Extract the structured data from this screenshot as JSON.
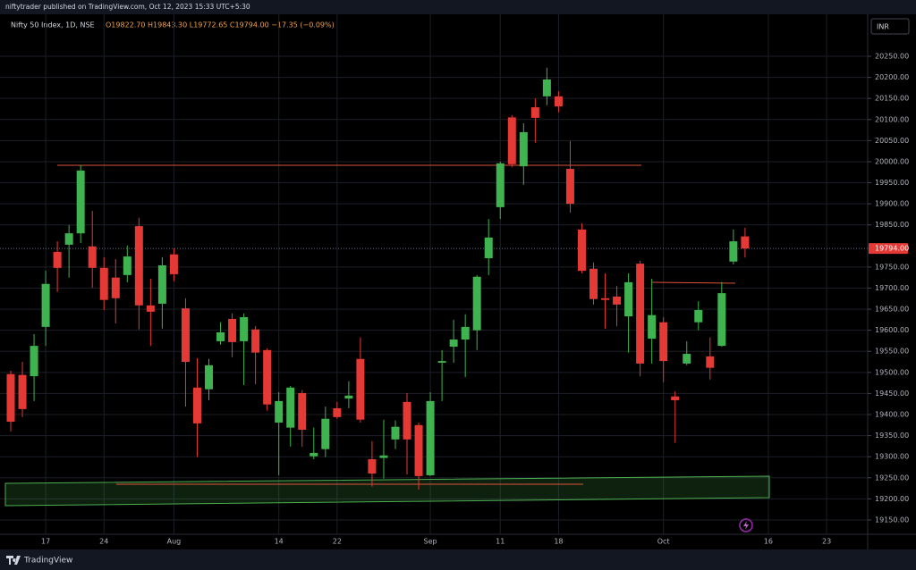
{
  "chart_data": {
    "type": "candlestick",
    "caption": "niftytrader published on TradingView.com, Oct 12, 2023 15:33 UTC+5:30",
    "title": "Nifty 50 Index, 1D, NSE",
    "subtitle": "O19822.70 H19843.30 L19772.65 C19794.00 −17.35 (−0.09%)",
    "currency": "INR",
    "brand": "TradingView",
    "last_price_label": "19794.00",
    "up_color": "#3fb34f",
    "down_color": "#e53935",
    "grid": true,
    "categories": [
      null,
      null,
      null,
      "17",
      null,
      null,
      null,
      null,
      "24",
      null,
      null,
      null,
      null,
      null,
      "Aug",
      null,
      null,
      null,
      null,
      null,
      null,
      null,
      null,
      "14",
      null,
      null,
      null,
      null,
      "22",
      null,
      null,
      null,
      null,
      null,
      null,
      null,
      "Sep",
      null,
      null,
      null,
      null,
      null,
      "11",
      null,
      null,
      null,
      null,
      "18",
      null,
      null,
      null,
      null,
      null,
      null,
      null,
      null,
      "Oct",
      null,
      null,
      null,
      null,
      null,
      null,
      null,
      null,
      "16",
      null,
      null,
      null,
      null,
      "23",
      null,
      null,
      null
    ],
    "open": [
      19496,
      19494,
      19491,
      19608,
      19786,
      19803,
      19830,
      19799,
      19748,
      19725,
      19731,
      19847,
      19659,
      19663,
      19780,
      19652,
      19464,
      19460,
      19574,
      19627,
      19574,
      19602,
      19553,
      19381,
      19369,
      19451,
      19301,
      19318,
      19415,
      19438,
      19532,
      19294,
      19297,
      19341,
      19430,
      19375,
      19256,
      19523,
      19561,
      19578,
      19600,
      19771,
      19892,
      20105,
      19989,
      20129,
      20155,
      20155,
      19983,
      19839,
      19746,
      19676,
      19680,
      19633,
      19758,
      19580,
      19619,
      19443,
      19521,
      19619,
      19538,
      19563,
      19763,
      19822.7,
      null,
      null,
      null,
      null,
      null,
      null,
      null,
      null,
      null,
      null
    ],
    "high": [
      19504,
      19525,
      19591,
      19741,
      19811,
      19850,
      19992,
      19883,
      19773,
      19769,
      19801,
      19867,
      19722,
      19773,
      19794,
      19676,
      19534,
      19532,
      19619,
      19640,
      19640,
      19610,
      19557,
      19453,
      19468,
      19458,
      19369,
      19419,
      19430,
      19479,
      19583,
      19337,
      19388,
      19386,
      19451,
      19381,
      19453,
      19553,
      19625,
      19638,
      19731,
      19864,
      20000,
      20110,
      20091,
      20150,
      20223,
      20167,
      20049,
      19854,
      19761,
      19735,
      19705,
      19735,
      19765,
      19722,
      19631,
      19455,
      19574,
      19669,
      19583,
      19714,
      19839,
      19843.3,
      null,
      null,
      null,
      null,
      null,
      null,
      null,
      null,
      null,
      null
    ],
    "low": [
      19360,
      19394,
      19432,
      19563,
      19691,
      19725,
      19807,
      19701,
      19648,
      19616,
      19714,
      19602,
      19563,
      19604,
      19716,
      19419,
      19299,
      19434,
      19566,
      19536,
      19470,
      19472,
      19409,
      19256,
      19324,
      19324,
      19294,
      19299,
      19390,
      19415,
      19381,
      19229,
      19248,
      19318,
      19258,
      19222,
      19254,
      19432,
      19523,
      19489,
      19553,
      19731,
      19864,
      19987,
      19945,
      20045,
      20134,
      20117,
      19879,
      19735,
      19661,
      19604,
      19610,
      19547,
      19491,
      19521,
      19477,
      19333,
      19517,
      19600,
      19483,
      19561,
      19756,
      19772.65,
      null,
      null,
      null,
      null,
      null,
      null,
      null,
      null,
      null,
      null
    ],
    "close": [
      19383,
      19413,
      19563,
      19710,
      19748,
      19830,
      19979,
      19748,
      19672,
      19676,
      19775,
      19659,
      19644,
      19754,
      19733,
      19525,
      19379,
      19517,
      19595,
      19572,
      19631,
      19547,
      19424,
      19432,
      19464,
      19364,
      19309,
      19390,
      19394,
      19445,
      19388,
      19260,
      19303,
      19371,
      19341,
      19254,
      19432,
      19527,
      19578,
      19608,
      19727,
      19820,
      19996,
      19994,
      20070,
      20104,
      20195,
      20131,
      19900,
      19741,
      19674,
      19672,
      19661,
      19714,
      19521,
      19636,
      19527,
      19434,
      19544,
      19648,
      19511,
      19688,
      19811,
      19794.0,
      null,
      null,
      null,
      null,
      null,
      null,
      null,
      null,
      null,
      null
    ],
    "ylim": [
      19116,
      20303
    ],
    "yticks": [
      {
        "value": 19150,
        "label": "19150.00"
      },
      {
        "value": 19200,
        "label": "19200.00"
      },
      {
        "value": 19250,
        "label": "19250.00"
      },
      {
        "value": 19300,
        "label": "19300.00"
      },
      {
        "value": 19350,
        "label": "19350.00"
      },
      {
        "value": 19400,
        "label": "19400.00"
      },
      {
        "value": 19450,
        "label": "19450.00"
      },
      {
        "value": 19500,
        "label": "19500.00"
      },
      {
        "value": 19550,
        "label": "19550.00"
      },
      {
        "value": 19600,
        "label": "19600.00"
      },
      {
        "value": 19650,
        "label": "19650.00"
      },
      {
        "value": 19700,
        "label": "19700.00"
      },
      {
        "value": 19750,
        "label": "19750.00"
      },
      {
        "value": 19850,
        "label": "19850.00"
      },
      {
        "value": 19900,
        "label": "19900.00"
      },
      {
        "value": 19950,
        "label": "19950.00"
      },
      {
        "value": 20000,
        "label": "20000.00"
      },
      {
        "value": 20050,
        "label": "20050.00"
      },
      {
        "value": 20100,
        "label": "20100.00"
      },
      {
        "value": 20150,
        "label": "20150.00"
      },
      {
        "value": 20200,
        "label": "20200.00"
      },
      {
        "value": 20250,
        "label": "20250.00"
      }
    ]
  }
}
